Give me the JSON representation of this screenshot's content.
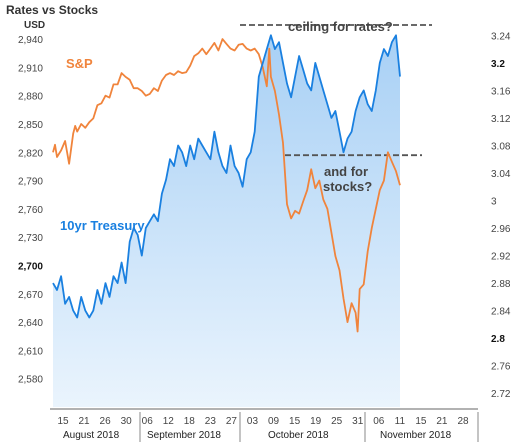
{
  "chart_data": {
    "type": "line",
    "title": "Rates vs Stocks",
    "left_axis_unit": "USD",
    "left_axis": {
      "ticks": [
        "2,940",
        "2,910",
        "2,880",
        "2,850",
        "2,820",
        "2,790",
        "2,760",
        "2,730",
        "2,700",
        "2,670",
        "2,640",
        "2,610",
        "2,580"
      ],
      "bold_tick": "2,700",
      "ylim": [
        2550,
        2955
      ]
    },
    "right_axis": {
      "ticks": [
        "3.24",
        "3.2",
        "3.16",
        "3.12",
        "3.08",
        "3.04",
        "3",
        "2.96",
        "2.92",
        "2.88",
        "2.84",
        "2.8",
        "2.76",
        "2.72"
      ],
      "bold_ticks": [
        "3.2",
        "2.8"
      ],
      "ylim": [
        2.7,
        3.255
      ]
    },
    "x_axis": {
      "day_ticks": [
        "15",
        "21",
        "26",
        "30",
        "06",
        "12",
        "18",
        "23",
        "27",
        "03",
        "09",
        "15",
        "19",
        "25",
        "31",
        "06",
        "11",
        "15",
        "21",
        "28"
      ],
      "months": [
        "August 2018",
        "September 2018",
        "October 2018",
        "November 2018"
      ]
    },
    "colors": {
      "sp": "#f0843c",
      "treasury": "#1a80e0",
      "fill_top": "#a8d0f5",
      "fill_bottom": "#eaf4fd",
      "dashes": "#555555"
    },
    "series": [
      {
        "name": "S&P",
        "axis": "left",
        "x": [
          0,
          0.5,
          1,
          2,
          3,
          4,
          5,
          5.5,
          6,
          7,
          8,
          9,
          10,
          11,
          12,
          13,
          14,
          15,
          16,
          17,
          18,
          19,
          20,
          21,
          22,
          23,
          24,
          25,
          26,
          27,
          28,
          29,
          30,
          31,
          32,
          33,
          34,
          35,
          36,
          37,
          38,
          39,
          40,
          41,
          42,
          43,
          44,
          45,
          46,
          47,
          48,
          49,
          50,
          51,
          52,
          53,
          53.6,
          54,
          55,
          56,
          57,
          58,
          59,
          60,
          61,
          62,
          63,
          64,
          65,
          66,
          67,
          68,
          69,
          70,
          71,
          72,
          73,
          74,
          75,
          75.5,
          76,
          77,
          78,
          79,
          80,
          81,
          82,
          83,
          84,
          85,
          86
        ],
        "values": [
          2820,
          2828,
          2815,
          2822,
          2832,
          2808,
          2840,
          2848,
          2842,
          2850,
          2846,
          2852,
          2856,
          2870,
          2872,
          2880,
          2878,
          2892,
          2892,
          2904,
          2900,
          2897,
          2888,
          2888,
          2885,
          2880,
          2882,
          2888,
          2885,
          2896,
          2902,
          2904,
          2902,
          2906,
          2904,
          2905,
          2912,
          2922,
          2925,
          2930,
          2924,
          2930,
          2936,
          2928,
          2940,
          2935,
          2930,
          2928,
          2934,
          2935,
          2930,
          2928,
          2930,
          2924,
          2910,
          2890,
          2930,
          2900,
          2885,
          2860,
          2830,
          2765,
          2750,
          2758,
          2755,
          2768,
          2780,
          2802,
          2782,
          2790,
          2770,
          2760,
          2735,
          2710,
          2695,
          2665,
          2640,
          2660,
          2650,
          2630,
          2675,
          2680,
          2715,
          2740,
          2760,
          2780,
          2790,
          2820,
          2810,
          2800,
          2785
        ]
      },
      {
        "name": "10yr Treasury",
        "axis": "right",
        "x": [
          0,
          1,
          2,
          3,
          4,
          5,
          6,
          7,
          8,
          9,
          10,
          11,
          12,
          13,
          14,
          15,
          16,
          17,
          18,
          19,
          20,
          21,
          22,
          23,
          24,
          25,
          26,
          27,
          28,
          29,
          30,
          31,
          32,
          33,
          34,
          35,
          36,
          37,
          38,
          39,
          40,
          41,
          42,
          43,
          44,
          45,
          46,
          47,
          48,
          49,
          50,
          51,
          52,
          53,
          54,
          55,
          56,
          57,
          58,
          59,
          60,
          61,
          62,
          63,
          64,
          65,
          66,
          67,
          68,
          69,
          70,
          71,
          72,
          73,
          74,
          75,
          76,
          77,
          78,
          79,
          80,
          81,
          82,
          83,
          84,
          85,
          86
        ],
        "values": [
          2.88,
          2.87,
          2.89,
          2.85,
          2.86,
          2.84,
          2.83,
          2.86,
          2.84,
          2.83,
          2.84,
          2.87,
          2.85,
          2.88,
          2.86,
          2.89,
          2.88,
          2.91,
          2.88,
          2.94,
          2.96,
          2.95,
          2.92,
          2.96,
          2.97,
          2.98,
          2.97,
          3.01,
          3.03,
          3.06,
          3.05,
          3.08,
          3.07,
          3.05,
          3.08,
          3.06,
          3.09,
          3.08,
          3.07,
          3.06,
          3.1,
          3.07,
          3.05,
          3.04,
          3.08,
          3.05,
          3.04,
          3.02,
          3.06,
          3.07,
          3.1,
          3.18,
          3.2,
          3.22,
          3.24,
          3.22,
          3.23,
          3.2,
          3.17,
          3.15,
          3.18,
          3.21,
          3.19,
          3.17,
          3.16,
          3.2,
          3.18,
          3.16,
          3.14,
          3.12,
          3.13,
          3.1,
          3.07,
          3.09,
          3.1,
          3.13,
          3.15,
          3.16,
          3.14,
          3.13,
          3.16,
          3.2,
          3.22,
          3.21,
          3.23,
          3.24,
          3.18
        ]
      }
    ],
    "annotations": [
      {
        "text": "ceiling for rates?"
      },
      {
        "text": "and for"
      },
      {
        "text": "stocks?"
      },
      {
        "text": "S&P"
      },
      {
        "text": "10yr Treasury"
      }
    ]
  }
}
